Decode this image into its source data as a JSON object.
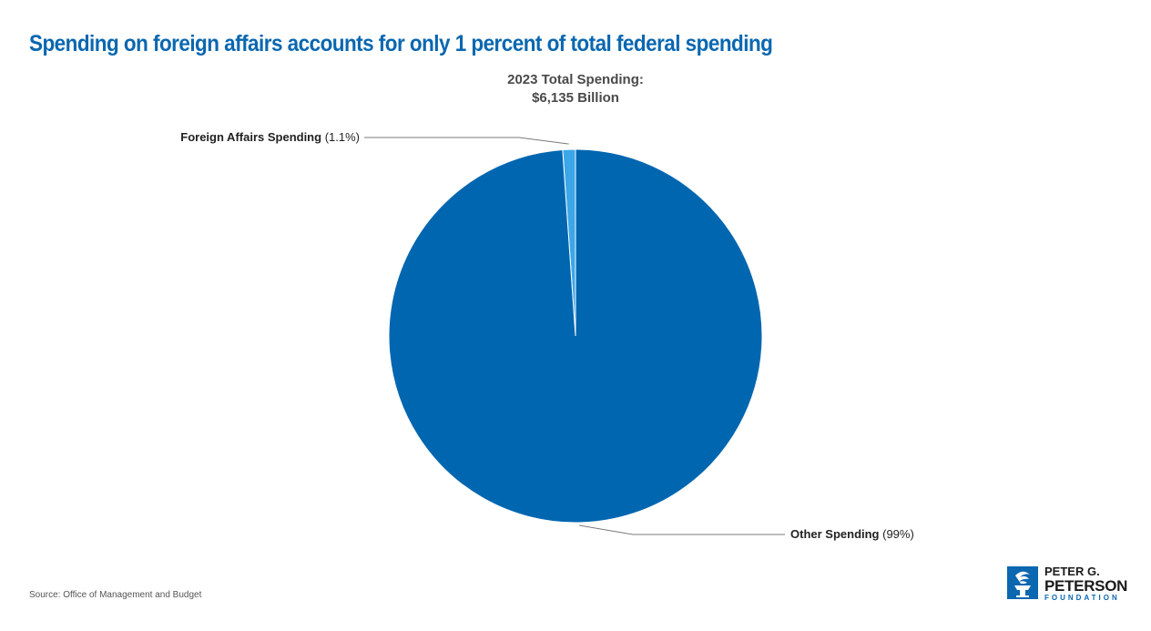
{
  "header": {
    "title": "Spending on foreign affairs accounts for only 1 percent of total federal spending",
    "subtitle_line1": "2023 Total Spending:",
    "subtitle_line2": "$6,135 Billion"
  },
  "chart_data": {
    "type": "pie",
    "title": "Spending on foreign affairs accounts for only 1 percent of total federal spending",
    "subtitle": "2023 Total Spending: $6,135 Billion",
    "slices": [
      {
        "label": "Foreign Affairs Spending",
        "value_label": "(1.1%)",
        "value": 1.1,
        "color": "#3ba7e9"
      },
      {
        "label": "Other Spending",
        "value_label": "(99%)",
        "value": 98.9,
        "color": "#0166b0"
      }
    ]
  },
  "labels": {
    "foreign_name": "Foreign Affairs Spending",
    "foreign_value": "(1.1%)",
    "other_name": "Other Spending",
    "other_value": "(99%)"
  },
  "footer": {
    "source": "Source: Office of Management and Budget"
  },
  "logo": {
    "line1": "PETER G.",
    "line2": "PETERSON",
    "line3": "FOUNDATION",
    "icon": "torch-icon",
    "color": "#0a67b0"
  }
}
